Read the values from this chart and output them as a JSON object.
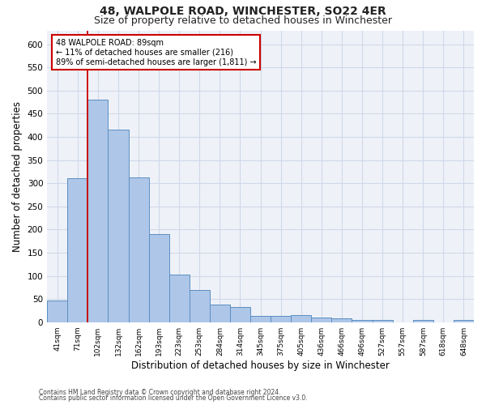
{
  "title": "48, WALPOLE ROAD, WINCHESTER, SO22 4ER",
  "subtitle": "Size of property relative to detached houses in Winchester",
  "xlabel": "Distribution of detached houses by size in Winchester",
  "ylabel": "Number of detached properties",
  "categories": [
    "41sqm",
    "71sqm",
    "102sqm",
    "132sqm",
    "162sqm",
    "193sqm",
    "223sqm",
    "253sqm",
    "284sqm",
    "314sqm",
    "345sqm",
    "375sqm",
    "405sqm",
    "436sqm",
    "466sqm",
    "496sqm",
    "527sqm",
    "557sqm",
    "587sqm",
    "618sqm",
    "648sqm"
  ],
  "values": [
    46,
    311,
    480,
    415,
    313,
    190,
    103,
    70,
    38,
    32,
    14,
    13,
    15,
    10,
    9,
    5,
    5,
    0,
    5,
    0,
    5
  ],
  "bar_color": "#aec6e8",
  "bar_edge_color": "#5a8fc2",
  "grid_color": "#d0d8e8",
  "background_color": "#eef2f8",
  "vline_color": "#cc0000",
  "annotation_text": "48 WALPOLE ROAD: 89sqm\n← 11% of detached houses are smaller (216)\n89% of semi-detached houses are larger (1,811) →",
  "annotation_box_color": "#ffffff",
  "annotation_box_edge": "#cc0000",
  "ylim": [
    0,
    630
  ],
  "yticks": [
    0,
    50,
    100,
    150,
    200,
    250,
    300,
    350,
    400,
    450,
    500,
    550,
    600
  ],
  "footer_line1": "Contains HM Land Registry data © Crown copyright and database right 2024.",
  "footer_line2": "Contains public sector information licensed under the Open Government Licence v3.0.",
  "title_fontsize": 10,
  "subtitle_fontsize": 9,
  "xlabel_fontsize": 8.5,
  "ylabel_fontsize": 8.5
}
